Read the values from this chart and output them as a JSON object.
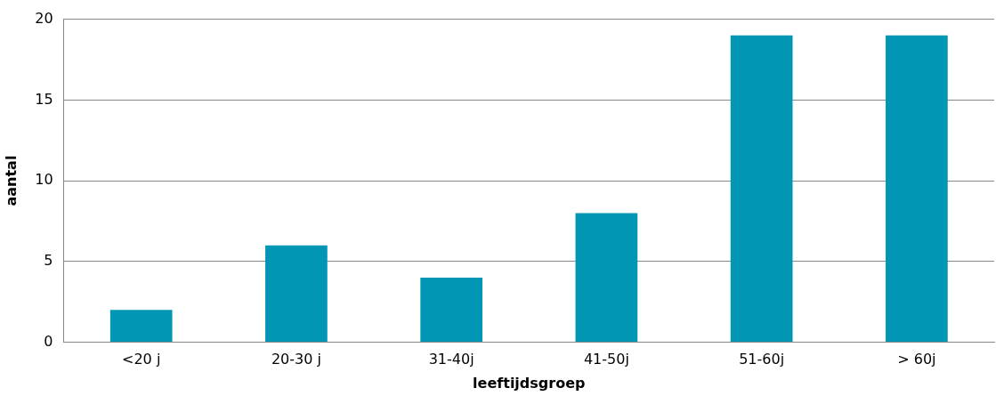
{
  "chart_data": {
    "type": "bar",
    "xlabel": "leeftijdsgroep",
    "ylabel": "aantal",
    "categories": [
      "<20 j",
      "20-30 j",
      "31-40j",
      "41-50j",
      "51-60j",
      "> 60j"
    ],
    "values": [
      2,
      6,
      4,
      8,
      19,
      19
    ],
    "color": "#0096b4",
    "ylim": [
      0,
      20
    ],
    "yticks": [
      0,
      5,
      10,
      15,
      20
    ],
    "grid": "y",
    "legend": false
  }
}
